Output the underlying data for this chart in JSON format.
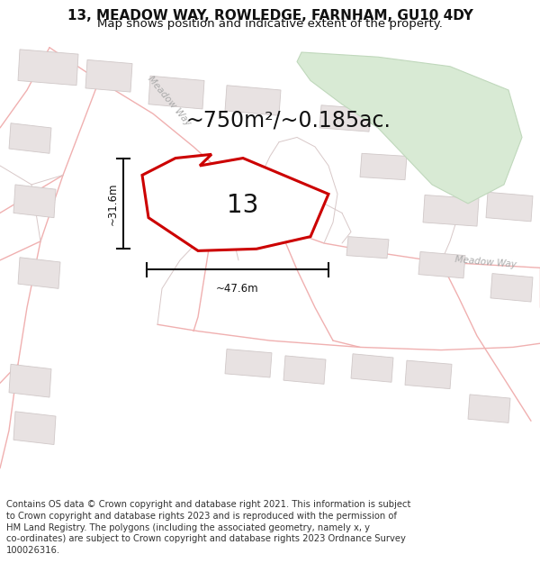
{
  "title_line1": "13, MEADOW WAY, ROWLEDGE, FARNHAM, GU10 4DY",
  "title_line2": "Map shows position and indicative extent of the property.",
  "area_text": "~750m²/~0.185ac.",
  "number_label": "13",
  "dim_width": "~47.6m",
  "dim_height": "~31.6m",
  "footer_lines": [
    "Contains OS data © Crown copyright and database right 2021. This information is subject",
    "to Crown copyright and database rights 2023 and is reproduced with the permission of",
    "HM Land Registry. The polygons (including the associated geometry, namely x, y",
    "co-ordinates) are subject to Crown copyright and database rights 2023 Ordnance Survey",
    "100026316."
  ],
  "map_bg": "#f7f4f4",
  "road_color": "#f0b0b0",
  "road_lw": 1.0,
  "boundary_color": "#d8c8c8",
  "boundary_lw": 0.7,
  "building_fill": "#e8e2e2",
  "building_edge": "#d0c8c8",
  "plot_color": "#cc0000",
  "plot_fill": "#ffffff",
  "green_fill": "#d8ead4",
  "green_edge": "#c0d8bc",
  "dim_color": "#111111",
  "road_label_color": "#aaaaaa",
  "title_color": "#111111",
  "area_fontsize": 17,
  "number_fontsize": 20,
  "title_fontsize": 11,
  "subtitle_fontsize": 9.5,
  "footer_fontsize": 7.2,
  "dim_label_fontsize": 8.5
}
